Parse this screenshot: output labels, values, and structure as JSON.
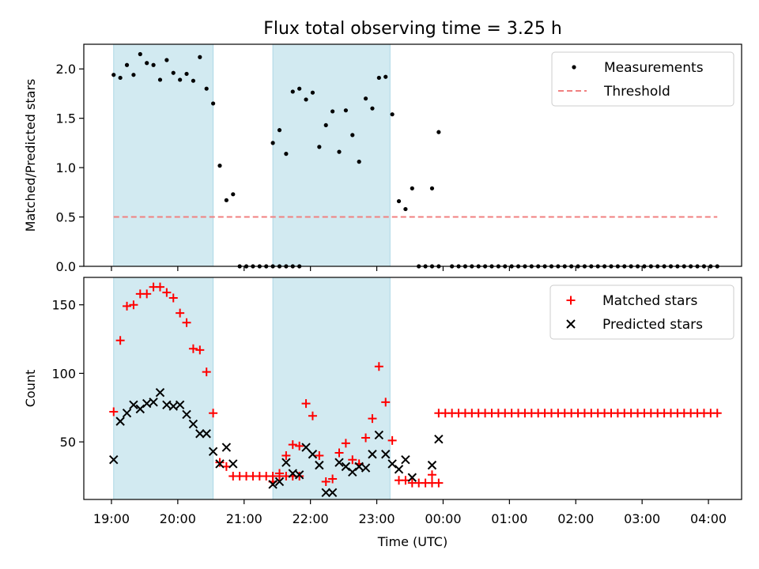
{
  "chart_data": [
    {
      "type": "scatter",
      "title": "Flux total observing time = 3.25 h",
      "xlabel": "",
      "ylabel": "Matched/Predicted stars",
      "xlim": [
        "18:35",
        "04:30"
      ],
      "ylim": [
        0,
        2.25
      ],
      "yticks": [
        "0.0",
        "0.5",
        "1.0",
        "1.5",
        "2.0"
      ],
      "legend": "top-right",
      "shaded_intervals": [
        [
          "19:02",
          "20:32"
        ],
        [
          "21:26",
          "23:12"
        ]
      ],
      "shade_color": "#add8e6",
      "series": [
        {
          "name": "Measurements",
          "color": "#000000",
          "marker": "dot",
          "points": [
            [
              "19:02",
              1.94
            ],
            [
              "19:08",
              1.91
            ],
            [
              "19:14",
              2.04
            ],
            [
              "19:20",
              1.94
            ],
            [
              "19:26",
              2.15
            ],
            [
              "19:32",
              2.06
            ],
            [
              "19:38",
              2.04
            ],
            [
              "19:44",
              1.89
            ],
            [
              "19:50",
              2.09
            ],
            [
              "19:56",
              1.96
            ],
            [
              "20:02",
              1.89
            ],
            [
              "20:08",
              1.95
            ],
            [
              "20:14",
              1.88
            ],
            [
              "20:20",
              2.12
            ],
            [
              "20:26",
              1.8
            ],
            [
              "20:32",
              1.65
            ],
            [
              "20:38",
              1.02
            ],
            [
              "20:44",
              0.67
            ],
            [
              "20:50",
              0.73
            ],
            [
              "20:56",
              0
            ],
            [
              "21:02",
              0
            ],
            [
              "21:08",
              0
            ],
            [
              "21:14",
              0
            ],
            [
              "21:20",
              0
            ],
            [
              "21:26",
              0
            ],
            [
              "21:32",
              0
            ],
            [
              "21:38",
              0
            ],
            [
              "21:44",
              0
            ],
            [
              "21:50",
              0
            ],
            [
              "21:26",
              1.25
            ],
            [
              "21:32",
              1.38
            ],
            [
              "21:38",
              1.14
            ],
            [
              "21:44",
              1.77
            ],
            [
              "21:50",
              1.8
            ],
            [
              "21:56",
              1.69
            ],
            [
              "22:02",
              1.76
            ],
            [
              "22:08",
              1.21
            ],
            [
              "22:14",
              1.43
            ],
            [
              "22:20",
              1.57
            ],
            [
              "22:26",
              1.16
            ],
            [
              "22:32",
              1.58
            ],
            [
              "22:38",
              1.33
            ],
            [
              "22:44",
              1.06
            ],
            [
              "22:50",
              1.7
            ],
            [
              "22:56",
              1.6
            ],
            [
              "23:02",
              1.91
            ],
            [
              "23:08",
              1.92
            ],
            [
              "23:14",
              1.54
            ],
            [
              "23:20",
              0.66
            ],
            [
              "23:26",
              0.58
            ],
            [
              "23:32",
              0.79
            ],
            [
              "23:38",
              0
            ],
            [
              "23:44",
              0
            ],
            [
              "23:50",
              0
            ],
            [
              "23:56",
              0
            ],
            [
              "23:50",
              0.79
            ],
            [
              "23:56",
              1.36
            ],
            [
              "00:08",
              0
            ],
            [
              "00:14",
              0
            ],
            [
              "00:20",
              0
            ],
            [
              "00:26",
              0
            ],
            [
              "00:32",
              0
            ],
            [
              "00:38",
              0
            ],
            [
              "00:44",
              0
            ],
            [
              "00:50",
              0
            ],
            [
              "00:56",
              0
            ],
            [
              "01:02",
              0
            ],
            [
              "01:08",
              0
            ],
            [
              "01:14",
              0
            ],
            [
              "01:20",
              0
            ],
            [
              "01:26",
              0
            ],
            [
              "01:32",
              0
            ],
            [
              "01:38",
              0
            ],
            [
              "01:44",
              0
            ],
            [
              "01:50",
              0
            ],
            [
              "01:56",
              0
            ],
            [
              "02:02",
              0
            ],
            [
              "02:08",
              0
            ],
            [
              "02:14",
              0
            ],
            [
              "02:20",
              0
            ],
            [
              "02:26",
              0
            ],
            [
              "02:32",
              0
            ],
            [
              "02:38",
              0
            ],
            [
              "02:44",
              0
            ],
            [
              "02:50",
              0
            ],
            [
              "02:56",
              0
            ],
            [
              "03:02",
              0
            ],
            [
              "03:08",
              0
            ],
            [
              "03:14",
              0
            ],
            [
              "03:20",
              0
            ],
            [
              "03:26",
              0
            ],
            [
              "03:32",
              0
            ],
            [
              "03:38",
              0
            ],
            [
              "03:44",
              0
            ],
            [
              "03:50",
              0
            ],
            [
              "03:56",
              0
            ],
            [
              "04:02",
              0
            ],
            [
              "04:08",
              0
            ]
          ]
        },
        {
          "name": "Threshold",
          "color": "#f08080",
          "style": "dashed",
          "points": [
            [
              "19:02",
              0.5
            ],
            [
              "04:08",
              0.5
            ]
          ]
        }
      ]
    },
    {
      "type": "scatter",
      "title": "",
      "xlabel": "Time (UTC)",
      "ylabel": "Count",
      "xlim": [
        "18:35",
        "04:30"
      ],
      "ylim": [
        8,
        170
      ],
      "yticks": [
        "50",
        "100",
        "150"
      ],
      "xticks": [
        "19:00",
        "20:00",
        "21:00",
        "22:00",
        "23:00",
        "00:00",
        "01:00",
        "02:00",
        "03:00",
        "04:00"
      ],
      "legend": "top-right",
      "shaded_intervals": [
        [
          "19:02",
          "20:32"
        ],
        [
          "21:26",
          "23:12"
        ]
      ],
      "shade_color": "#add8e6",
      "series": [
        {
          "name": "Matched stars",
          "color": "#ff0000",
          "marker": "plus",
          "points": [
            [
              "19:02",
              72
            ],
            [
              "19:08",
              124
            ],
            [
              "19:14",
              149
            ],
            [
              "19:20",
              150
            ],
            [
              "19:26",
              158
            ],
            [
              "19:32",
              158
            ],
            [
              "19:38",
              163
            ],
            [
              "19:44",
              163
            ],
            [
              "19:50",
              159
            ],
            [
              "19:56",
              155
            ],
            [
              "20:02",
              144
            ],
            [
              "20:08",
              137
            ],
            [
              "20:14",
              118
            ],
            [
              "20:20",
              117
            ],
            [
              "20:26",
              101
            ],
            [
              "20:32",
              71
            ],
            [
              "20:38",
              35
            ],
            [
              "20:44",
              32
            ],
            [
              "20:50",
              25
            ],
            [
              "20:56",
              25
            ],
            [
              "21:02",
              25
            ],
            [
              "21:08",
              25
            ],
            [
              "21:14",
              25
            ],
            [
              "21:20",
              25
            ],
            [
              "21:26",
              25
            ],
            [
              "21:32",
              25
            ],
            [
              "21:38",
              25
            ],
            [
              "21:44",
              25
            ],
            [
              "21:50",
              25
            ],
            [
              "21:26",
              21
            ],
            [
              "21:32",
              27
            ],
            [
              "21:38",
              40
            ],
            [
              "21:44",
              48
            ],
            [
              "21:50",
              47
            ],
            [
              "21:56",
              78
            ],
            [
              "22:02",
              69
            ],
            [
              "22:08",
              40
            ],
            [
              "22:14",
              21
            ],
            [
              "22:20",
              23
            ],
            [
              "22:26",
              42
            ],
            [
              "22:32",
              49
            ],
            [
              "22:38",
              37
            ],
            [
              "22:44",
              34
            ],
            [
              "22:50",
              53
            ],
            [
              "22:56",
              67
            ],
            [
              "23:02",
              105
            ],
            [
              "23:08",
              79
            ],
            [
              "23:14",
              51
            ],
            [
              "23:20",
              22
            ],
            [
              "23:26",
              22
            ],
            [
              "23:32",
              20
            ],
            [
              "23:38",
              20
            ],
            [
              "23:44",
              20
            ],
            [
              "23:50",
              20
            ],
            [
              "23:56",
              20
            ],
            [
              "23:50",
              26
            ],
            [
              "23:56",
              71
            ],
            [
              "00:02",
              71
            ],
            [
              "00:08",
              71
            ],
            [
              "00:14",
              71
            ],
            [
              "00:20",
              71
            ],
            [
              "00:26",
              71
            ],
            [
              "00:32",
              71
            ],
            [
              "00:38",
              71
            ],
            [
              "00:44",
              71
            ],
            [
              "00:50",
              71
            ],
            [
              "00:56",
              71
            ],
            [
              "01:02",
              71
            ],
            [
              "01:08",
              71
            ],
            [
              "01:14",
              71
            ],
            [
              "01:20",
              71
            ],
            [
              "01:26",
              71
            ],
            [
              "01:32",
              71
            ],
            [
              "01:38",
              71
            ],
            [
              "01:44",
              71
            ],
            [
              "01:50",
              71
            ],
            [
              "01:56",
              71
            ],
            [
              "02:02",
              71
            ],
            [
              "02:08",
              71
            ],
            [
              "02:14",
              71
            ],
            [
              "02:20",
              71
            ],
            [
              "02:26",
              71
            ],
            [
              "02:32",
              71
            ],
            [
              "02:38",
              71
            ],
            [
              "02:44",
              71
            ],
            [
              "02:50",
              71
            ],
            [
              "02:56",
              71
            ],
            [
              "03:02",
              71
            ],
            [
              "03:08",
              71
            ],
            [
              "03:14",
              71
            ],
            [
              "03:20",
              71
            ],
            [
              "03:26",
              71
            ],
            [
              "03:32",
              71
            ],
            [
              "03:38",
              71
            ],
            [
              "03:44",
              71
            ],
            [
              "03:50",
              71
            ],
            [
              "03:56",
              71
            ],
            [
              "04:02",
              71
            ],
            [
              "04:08",
              71
            ]
          ]
        },
        {
          "name": "Predicted stars",
          "color": "#000000",
          "marker": "x",
          "points": [
            [
              "19:02",
              37
            ],
            [
              "19:08",
              65
            ],
            [
              "19:14",
              71
            ],
            [
              "19:20",
              77
            ],
            [
              "19:26",
              74
            ],
            [
              "19:32",
              78
            ],
            [
              "19:38",
              79
            ],
            [
              "19:44",
              86
            ],
            [
              "19:50",
              77
            ],
            [
              "19:56",
              76
            ],
            [
              "20:02",
              77
            ],
            [
              "20:08",
              70
            ],
            [
              "20:14",
              63
            ],
            [
              "20:20",
              56
            ],
            [
              "20:26",
              56
            ],
            [
              "20:32",
              43
            ],
            [
              "20:38",
              34
            ],
            [
              "20:44",
              46
            ],
            [
              "20:50",
              34
            ],
            [
              "21:26",
              19
            ],
            [
              "21:32",
              21
            ],
            [
              "21:38",
              35
            ],
            [
              "21:44",
              27
            ],
            [
              "21:50",
              26
            ],
            [
              "21:56",
              46
            ],
            [
              "22:02",
              41
            ],
            [
              "22:08",
              33
            ],
            [
              "22:14",
              13
            ],
            [
              "22:20",
              13
            ],
            [
              "22:26",
              35
            ],
            [
              "22:32",
              32
            ],
            [
              "22:38",
              28
            ],
            [
              "22:44",
              32
            ],
            [
              "22:50",
              31
            ],
            [
              "22:56",
              41
            ],
            [
              "23:02",
              55
            ],
            [
              "23:08",
              41
            ],
            [
              "23:14",
              34
            ],
            [
              "23:20",
              30
            ],
            [
              "23:26",
              37
            ],
            [
              "23:32",
              24
            ],
            [
              "23:50",
              33
            ],
            [
              "23:56",
              52
            ]
          ]
        }
      ]
    }
  ]
}
